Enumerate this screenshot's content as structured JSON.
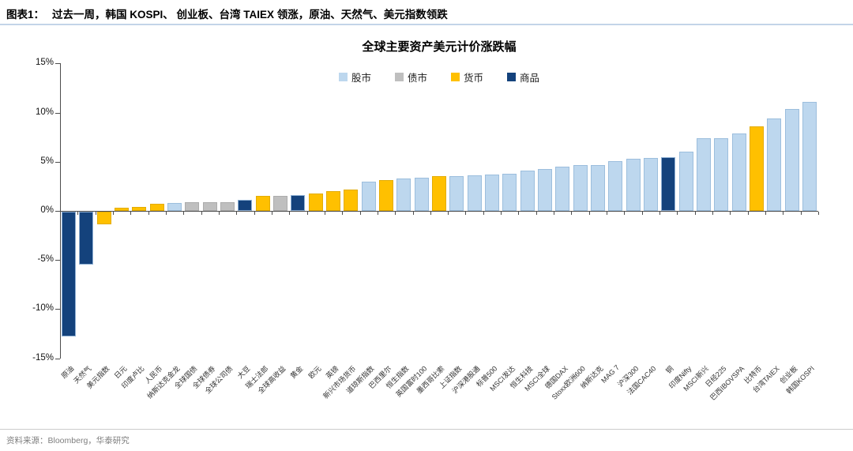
{
  "header": {
    "figure_label": "图表1：",
    "title": "过去一周，韩国 KOSPI、 创业板、台湾 TAIEX 领涨，原油、天然气、美元指数领跌"
  },
  "footer": {
    "source": "资料来源：Bloomberg，华泰研究"
  },
  "chart_data": {
    "type": "bar",
    "title": "全球主要资产美元计价涨跌幅",
    "ylabel": "",
    "y_unit": "%",
    "ylim": [
      -15,
      15
    ],
    "yticks": [
      "15%",
      "10%",
      "5%",
      "0%",
      "-5%",
      "-10%",
      "-15%"
    ],
    "grid": false,
    "legend_position": "top-center",
    "groups": [
      {
        "name": "股市",
        "color": "#BDD7EE",
        "border": "#9CBEDD"
      },
      {
        "name": "债市",
        "color": "#BFBFBF",
        "border": "#ACACAC"
      },
      {
        "name": "货币",
        "color": "#FFC000",
        "border": "#E3AC04"
      },
      {
        "name": "商品",
        "color": "#14427C",
        "border": "#8FB0D4"
      }
    ],
    "bars": [
      {
        "label": "原油",
        "value": -12.7,
        "group": "商品"
      },
      {
        "label": "天然气",
        "value": -5.4,
        "group": "商品"
      },
      {
        "label": "美元指数",
        "value": -1.3,
        "group": "货币"
      },
      {
        "label": "日元",
        "value": 0.3,
        "group": "货币"
      },
      {
        "label": "印度卢比",
        "value": 0.4,
        "group": "货币"
      },
      {
        "label": "人民币",
        "value": 0.7,
        "group": "货币"
      },
      {
        "label": "纳斯达克金龙",
        "value": 0.8,
        "group": "股市"
      },
      {
        "label": "全球国债",
        "value": 0.9,
        "group": "债市"
      },
      {
        "label": "全球债券",
        "value": 0.9,
        "group": "债市"
      },
      {
        "label": "全球公司债",
        "value": 0.9,
        "group": "债市"
      },
      {
        "label": "大豆",
        "value": 1.1,
        "group": "商品"
      },
      {
        "label": "瑞士法郎",
        "value": 1.5,
        "group": "货币"
      },
      {
        "label": "全球高收益",
        "value": 1.5,
        "group": "债市"
      },
      {
        "label": "黄金",
        "value": 1.6,
        "group": "商品"
      },
      {
        "label": "欧元",
        "value": 1.8,
        "group": "货币"
      },
      {
        "label": "英镑",
        "value": 2.0,
        "group": "货币"
      },
      {
        "label": "新兴市场货币",
        "value": 2.2,
        "group": "货币"
      },
      {
        "label": "道琼斯指数",
        "value": 3.0,
        "group": "股市"
      },
      {
        "label": "巴西里尔",
        "value": 3.1,
        "group": "货币"
      },
      {
        "label": "恒生指数",
        "value": 3.3,
        "group": "股市"
      },
      {
        "label": "英国富时100",
        "value": 3.4,
        "group": "股市"
      },
      {
        "label": "墨西哥比索",
        "value": 3.5,
        "group": "货币"
      },
      {
        "label": "上证指数",
        "value": 3.5,
        "group": "股市"
      },
      {
        "label": "沪深港股通",
        "value": 3.6,
        "group": "股市"
      },
      {
        "label": "标普500",
        "value": 3.7,
        "group": "股市"
      },
      {
        "label": "MSCI发达",
        "value": 3.8,
        "group": "股市"
      },
      {
        "label": "恒生科技",
        "value": 4.1,
        "group": "股市"
      },
      {
        "label": "MSCI全球",
        "value": 4.3,
        "group": "股市"
      },
      {
        "label": "德国DAX",
        "value": 4.5,
        "group": "股市"
      },
      {
        "label": "Stoxx欧洲600",
        "value": 4.7,
        "group": "股市"
      },
      {
        "label": "纳斯达克",
        "value": 4.7,
        "group": "股市"
      },
      {
        "label": "MAG 7",
        "value": 5.1,
        "group": "股市"
      },
      {
        "label": "沪深300",
        "value": 5.3,
        "group": "股市"
      },
      {
        "label": "法国CAC40",
        "value": 5.4,
        "group": "股市"
      },
      {
        "label": "铜",
        "value": 5.5,
        "group": "商品"
      },
      {
        "label": "印度Nifty",
        "value": 6.0,
        "group": "股市"
      },
      {
        "label": "MSCI新兴",
        "value": 7.4,
        "group": "股市"
      },
      {
        "label": "日经225",
        "value": 7.4,
        "group": "股市"
      },
      {
        "label": "巴西IBOVSPA",
        "value": 7.9,
        "group": "股市"
      },
      {
        "label": "比特币",
        "value": 8.6,
        "group": "货币"
      },
      {
        "label": "台湾TAIEX",
        "value": 9.4,
        "group": "股市"
      },
      {
        "label": "创业板",
        "value": 10.4,
        "group": "股市"
      },
      {
        "label": "韩国KOSPI",
        "value": 11.1,
        "group": "股市"
      }
    ]
  }
}
